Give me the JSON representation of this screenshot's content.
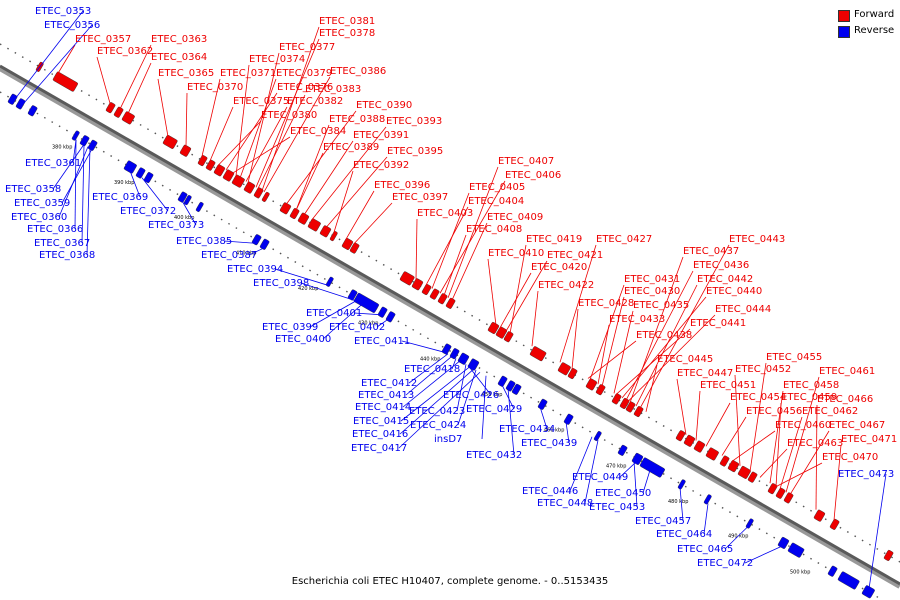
{
  "legend": {
    "forward_label": "Forward",
    "reverse_label": "Reverse",
    "forward_color": "#ee0000",
    "reverse_color": "#0000ee"
  },
  "caption": "Escherichia coli ETEC H10407, complete genome. - 0..5153435",
  "ticks": [
    "380 kbp",
    "390 kbp",
    "400 kbp",
    "410 kbp",
    "420 kbp",
    "430 kbp",
    "440 kbp",
    "450 kbp",
    "460 kbp",
    "470 kbp",
    "480 kbp",
    "490 kbp",
    "500 kbp"
  ],
  "forward_labels": [
    "ETEC_0381",
    "ETEC_0378",
    "ETEC_0377",
    "ETEC_0357",
    "ETEC_0363",
    "ETEC_0362",
    "ETEC_0364",
    "ETEC_0374",
    "ETEC_0365",
    "ETEC_0371",
    "ETEC_0379",
    "ETEC_0386",
    "ETEC_0370",
    "ETEC_0376",
    "ETEC_0383",
    "ETEC_0375",
    "ETEC_0382",
    "ETEC_0390",
    "ETEC_0380",
    "ETEC_0388",
    "ETEC_0393",
    "ETEC_0384",
    "ETEC_0391",
    "ETEC_0389",
    "ETEC_0395",
    "ETEC_0392",
    "ETEC_0407",
    "ETEC_0406",
    "ETEC_0396",
    "ETEC_0405",
    "ETEC_0397",
    "ETEC_0404",
    "ETEC_0403",
    "ETEC_0409",
    "ETEC_0408",
    "ETEC_0419",
    "ETEC_0427",
    "ETEC_0443",
    "ETEC_0410",
    "ETEC_0421",
    "ETEC_0437",
    "ETEC_0420",
    "ETEC_0436",
    "ETEC_0431",
    "ETEC_0442",
    "ETEC_0422",
    "ETEC_0430",
    "ETEC_0440",
    "ETEC_0428",
    "ETEC_0435",
    "ETEC_0444",
    "ETEC_0433",
    "ETEC_0441",
    "ETEC_0438",
    "ETEC_0445",
    "ETEC_0455",
    "ETEC_0452",
    "ETEC_0447",
    "ETEC_0461",
    "ETEC_0451",
    "ETEC_0458",
    "ETEC_0454",
    "ETEC_0459",
    "ETEC_0466",
    "ETEC_0456",
    "ETEC_0462",
    "ETEC_0460",
    "ETEC_0467",
    "ETEC_0463",
    "ETEC_0471",
    "ETEC_0470"
  ],
  "reverse_labels": [
    "ETEC_0353",
    "ETEC_0356",
    "ETEC_0361",
    "ETEC_0358",
    "ETEC_0359",
    "ETEC_0369",
    "ETEC_0360",
    "ETEC_0372",
    "ETEC_0366",
    "ETEC_0367",
    "ETEC_0373",
    "ETEC_0368",
    "ETEC_0385",
    "ETEC_0387",
    "ETEC_0394",
    "ETEC_0398",
    "ETEC_0401",
    "ETEC_0399",
    "ETEC_0402",
    "ETEC_0400",
    "ETEC_0411",
    "ETEC_0418",
    "ETEC_0412",
    "ETEC_0413",
    "ETEC_0426",
    "ETEC_0414",
    "ETEC_0429",
    "ETEC_0423",
    "ETEC_0415",
    "ETEC_0424",
    "ETEC_0434",
    "ETEC_0416",
    "insD7",
    "ETEC_0439",
    "ETEC_0417",
    "ETEC_0432",
    "ETEC_0449",
    "ETEC_0446",
    "ETEC_0450",
    "ETEC_0448",
    "ETEC_0453",
    "ETEC_0457",
    "ETEC_0464",
    "ETEC_0465",
    "ETEC_0472",
    "ETEC_0473"
  ]
}
